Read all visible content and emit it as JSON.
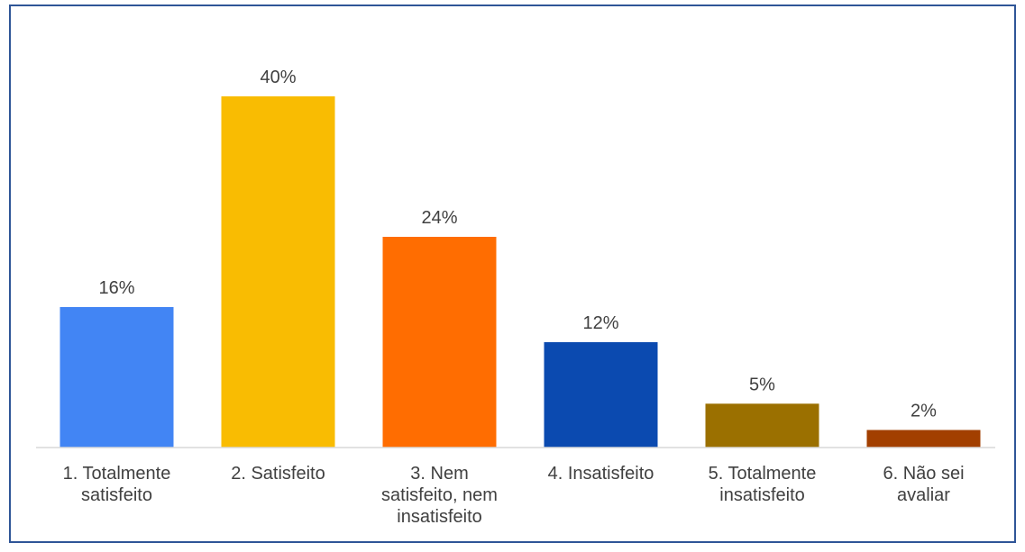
{
  "chart_data": {
    "type": "bar",
    "categories": [
      [
        "1. Totalmente",
        "satisfeito"
      ],
      [
        "2. Satisfeito"
      ],
      [
        "3. Nem",
        "satisfeito, nem",
        "insatisfeito"
      ],
      [
        "4. Insatisfeito"
      ],
      [
        "5. Totalmente",
        "insatisfeito"
      ],
      [
        "6. Não sei",
        "avaliar"
      ]
    ],
    "values": [
      16,
      40,
      24,
      12,
      5,
      2
    ],
    "data_labels": [
      "16%",
      "40%",
      "24%",
      "12%",
      "5%",
      "2%"
    ],
    "colors": [
      "#4285f4",
      "#f9bc02",
      "#ff6d01",
      "#0b4ab0",
      "#9b7000",
      "#a23f00"
    ],
    "ylim": [
      0,
      40
    ],
    "grid": false,
    "legend": "none"
  }
}
